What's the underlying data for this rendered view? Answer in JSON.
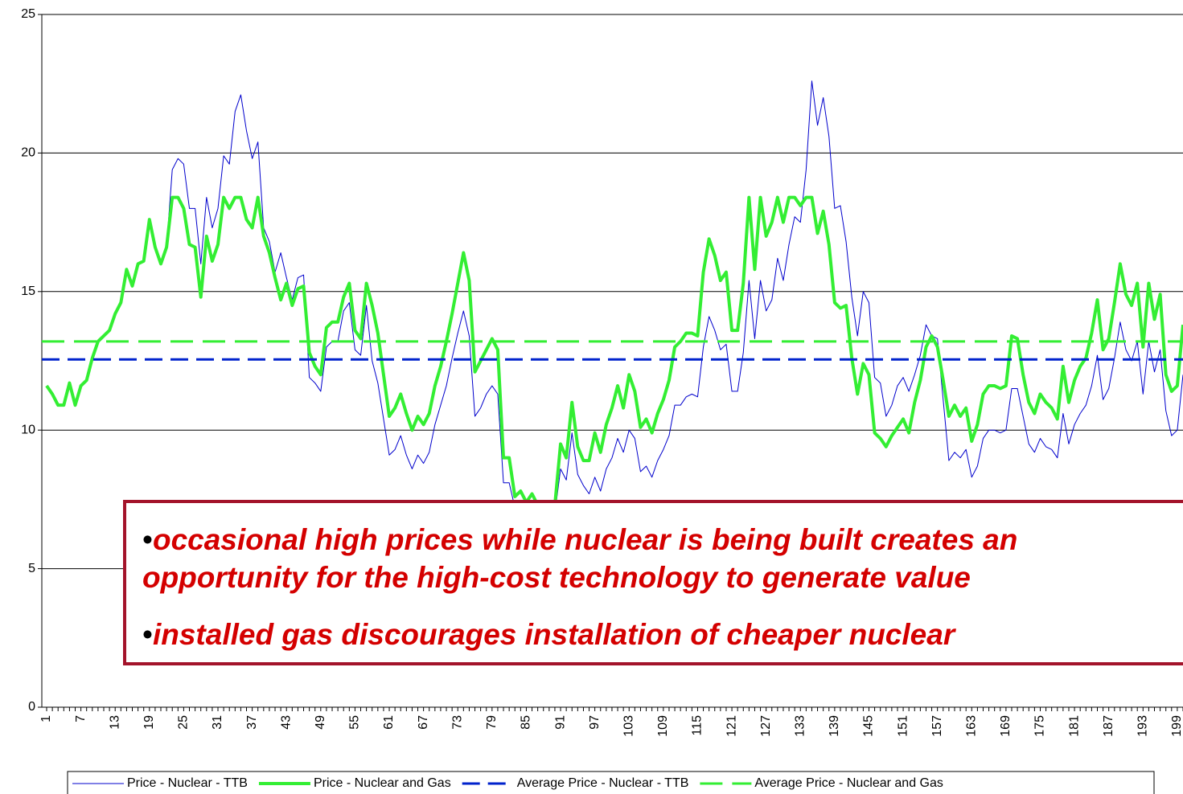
{
  "chart_data": {
    "type": "line",
    "categories": [
      "1",
      null,
      null,
      null,
      null,
      null,
      "7",
      null,
      null,
      null,
      null,
      null,
      "13",
      null,
      null,
      null,
      null,
      null,
      "19",
      null,
      null,
      null,
      null,
      null,
      "25",
      null,
      null,
      null,
      null,
      null,
      "31",
      null,
      null,
      null,
      null,
      null,
      "37",
      null,
      null,
      null,
      null,
      null,
      "43",
      null,
      null,
      null,
      null,
      null,
      "49",
      null,
      null,
      null,
      null,
      null,
      "55",
      null,
      null,
      null,
      null,
      null,
      "61",
      null,
      null,
      null,
      null,
      null,
      "67",
      null,
      null,
      null,
      null,
      null,
      "73",
      null,
      null,
      null,
      null,
      null,
      "79",
      null,
      null,
      null,
      null,
      null,
      "85",
      null,
      null,
      null,
      null,
      null,
      "91",
      null,
      null,
      null,
      null,
      null,
      "97",
      null,
      null,
      null,
      null,
      null,
      "103",
      null,
      null,
      null,
      null,
      null,
      "109",
      null,
      null,
      null,
      null,
      null,
      "115",
      null,
      null,
      null,
      null,
      null,
      "121",
      null,
      null,
      null,
      null,
      null,
      "127",
      null,
      null,
      null,
      null,
      null,
      "133",
      null,
      null,
      null,
      null,
      null,
      "139",
      null,
      null,
      null,
      null,
      null,
      "145",
      null,
      null,
      null,
      null,
      null,
      "151",
      null,
      null,
      null,
      null,
      null,
      "157",
      null,
      null,
      null,
      null,
      null,
      "163",
      null,
      null,
      null,
      null,
      null,
      "169",
      null,
      null,
      null,
      null,
      null,
      "175",
      null,
      null,
      null,
      null,
      null,
      "181",
      null,
      null,
      null,
      null,
      null,
      "187",
      null,
      null,
      null,
      null,
      null,
      "193",
      null,
      null,
      null,
      null,
      null,
      "199",
      null
    ],
    "series": [
      {
        "name": "Price - Nuclear - TTB",
        "color": "#0000cc",
        "width": 1,
        "values": [
          11.6,
          11.3,
          10.9,
          10.9,
          11.7,
          10.9,
          11.6,
          11.8,
          12.6,
          13.2,
          13.4,
          13.6,
          14.2,
          14.6,
          15.8,
          15.2,
          16.0,
          16.1,
          17.6,
          16.6,
          16.0,
          16.6,
          19.4,
          19.8,
          19.6,
          18.0,
          18.0,
          16.0,
          18.4,
          17.3,
          18.0,
          19.9,
          19.6,
          21.5,
          22.1,
          20.8,
          19.8,
          20.4,
          17.3,
          16.8,
          15.7,
          16.4,
          15.5,
          14.7,
          15.5,
          15.6,
          11.9,
          11.7,
          11.4,
          13.0,
          13.2,
          13.2,
          14.3,
          14.6,
          12.9,
          12.7,
          14.5,
          12.5,
          11.7,
          10.4,
          9.1,
          9.3,
          9.8,
          9.1,
          8.6,
          9.1,
          8.8,
          9.2,
          10.2,
          10.9,
          11.6,
          12.6,
          13.5,
          14.3,
          13.4,
          10.5,
          10.8,
          11.3,
          11.6,
          11.3,
          8.1,
          8.1,
          7.2,
          7.4,
          7.0,
          7.3,
          6.9,
          6.8,
          6.6,
          7.0,
          8.6,
          8.2,
          9.9,
          8.4,
          8.0,
          7.7,
          8.3,
          7.8,
          8.6,
          9.0,
          9.7,
          9.2,
          10.0,
          9.7,
          8.5,
          8.7,
          8.3,
          8.9,
          9.3,
          9.8,
          10.9,
          10.9,
          11.2,
          11.3,
          11.2,
          13.0,
          14.1,
          13.6,
          12.9,
          13.1,
          11.4,
          11.4,
          12.8,
          15.4,
          13.3,
          15.4,
          14.3,
          14.7,
          16.2,
          15.4,
          16.7,
          17.7,
          17.5,
          19.4,
          22.6,
          21.0,
          22.0,
          20.6,
          18.0,
          18.1,
          16.8,
          14.8,
          13.4,
          15.0,
          14.6,
          11.9,
          11.7,
          10.5,
          10.9,
          11.6,
          11.9,
          11.4,
          12.0,
          12.7,
          13.8,
          13.4,
          13.3,
          11.1,
          8.9,
          9.2,
          9.0,
          9.3,
          8.3,
          8.7,
          9.7,
          10.0,
          10.0,
          9.9,
          10.0,
          11.5,
          11.5,
          10.5,
          9.5,
          9.2,
          9.7,
          9.4,
          9.3,
          9.0,
          10.6,
          9.5,
          10.2,
          10.6,
          10.9,
          11.6,
          12.7,
          11.1,
          11.5,
          12.6,
          13.9,
          12.9,
          12.5,
          13.2,
          11.3,
          13.2,
          12.1,
          12.9,
          10.7,
          9.8,
          10.0,
          12.0
        ]
      },
      {
        "name": "Price - Nuclear and Gas",
        "color": "#33ee33",
        "width": 4,
        "values": [
          11.6,
          11.3,
          10.9,
          10.9,
          11.7,
          10.9,
          11.6,
          11.8,
          12.6,
          13.2,
          13.4,
          13.6,
          14.2,
          14.6,
          15.8,
          15.2,
          16.0,
          16.1,
          17.6,
          16.6,
          16.0,
          16.6,
          18.4,
          18.4,
          18.0,
          16.7,
          16.6,
          14.8,
          17.0,
          16.1,
          16.7,
          18.4,
          18.0,
          18.4,
          18.4,
          17.6,
          17.3,
          18.4,
          17.0,
          16.4,
          15.5,
          14.7,
          15.3,
          14.5,
          15.1,
          15.2,
          12.8,
          12.3,
          12.0,
          13.7,
          13.9,
          13.9,
          14.8,
          15.3,
          13.6,
          13.3,
          15.3,
          14.5,
          13.5,
          12.0,
          10.5,
          10.8,
          11.3,
          10.6,
          10.0,
          10.5,
          10.2,
          10.6,
          11.6,
          12.3,
          13.2,
          14.2,
          15.3,
          16.4,
          15.4,
          12.1,
          12.5,
          12.9,
          13.3,
          12.9,
          9.0,
          9.0,
          7.6,
          7.8,
          7.4,
          7.7,
          7.3,
          7.2,
          7.0,
          7.3,
          9.5,
          9.0,
          11.0,
          9.4,
          8.9,
          8.9,
          9.9,
          9.2,
          10.2,
          10.8,
          11.6,
          10.8,
          12.0,
          11.4,
          10.1,
          10.4,
          9.9,
          10.6,
          11.1,
          11.8,
          13.0,
          13.2,
          13.5,
          13.5,
          13.4,
          15.7,
          16.9,
          16.3,
          15.4,
          15.7,
          13.6,
          13.6,
          15.3,
          18.4,
          15.8,
          18.4,
          17.0,
          17.5,
          18.4,
          17.5,
          18.4,
          18.4,
          18.1,
          18.4,
          18.4,
          17.1,
          17.9,
          16.7,
          14.6,
          14.4,
          14.5,
          12.6,
          11.3,
          12.4,
          12.0,
          9.9,
          9.7,
          9.4,
          9.8,
          10.1,
          10.4,
          9.9,
          11.0,
          11.8,
          13.0,
          13.4,
          13.0,
          11.8,
          10.5,
          10.9,
          10.5,
          10.8,
          9.6,
          10.2,
          11.3,
          11.6,
          11.6,
          11.5,
          11.6,
          13.4,
          13.3,
          12.0,
          11.0,
          10.6,
          11.3,
          11.0,
          10.8,
          10.4,
          12.3,
          11.0,
          11.8,
          12.3,
          12.6,
          13.5,
          14.7,
          12.9,
          13.3,
          14.6,
          16.0,
          14.9,
          14.5,
          15.3,
          13.0,
          15.3,
          14.0,
          14.9,
          12.0,
          11.4,
          11.6,
          13.8
        ]
      },
      {
        "name": "Average Price - Nuclear - TTB",
        "color": "#0022cc",
        "width": 3,
        "dash": "22 10",
        "value": 12.55
      },
      {
        "name": "Average Price - Nuclear and Gas",
        "color": "#33ee33",
        "width": 3,
        "dash": "28 12",
        "value": 13.2
      }
    ],
    "ylim": [
      0,
      25
    ],
    "yticks": [
      0,
      5,
      10,
      15,
      20,
      25
    ],
    "grid": true,
    "annotations": [
      "occasional high prices while nuclear is being built creates an opportunity for the high-cost technology to generate value",
      "installed gas discourages installation of cheaper nuclear"
    ]
  }
}
